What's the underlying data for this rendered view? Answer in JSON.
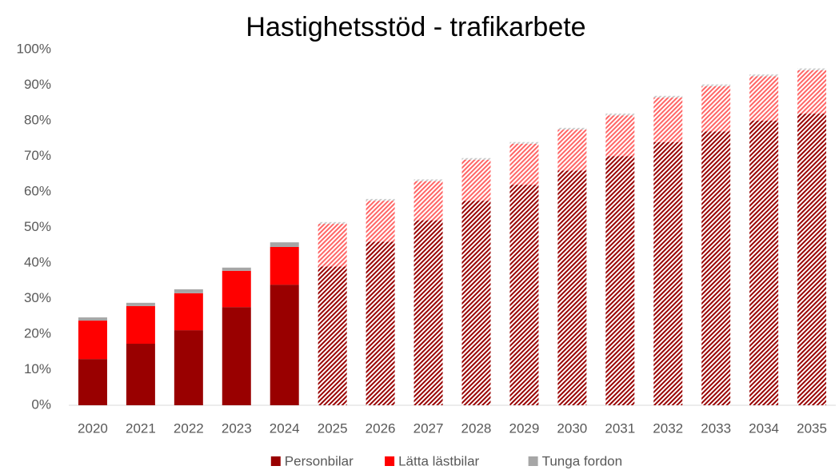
{
  "chart_data": {
    "type": "stacked_bar",
    "title": "Hastighetsstöd - trafikarbete",
    "categories": [
      "2020",
      "2021",
      "2022",
      "2023",
      "2024",
      "2025",
      "2026",
      "2027",
      "2028",
      "2029",
      "2030",
      "2031",
      "2032",
      "2033",
      "2034",
      "2035"
    ],
    "hatched": [
      false,
      false,
      false,
      false,
      false,
      true,
      true,
      true,
      true,
      true,
      true,
      true,
      true,
      true,
      true,
      true
    ],
    "series": [
      {
        "name": "Personbilar",
        "color": "#990000",
        "values": [
          13,
          17.3,
          21.1,
          27.6,
          33.9,
          39,
          46,
          52,
          57.5,
          62,
          66,
          70,
          74,
          77,
          80,
          82
        ]
      },
      {
        "name": "Lätta lästbilar",
        "color": "#ff0000",
        "values": [
          10.8,
          10.6,
          10.4,
          10.2,
          10.6,
          12,
          11.5,
          11,
          11.5,
          11.5,
          11.5,
          11.5,
          12.5,
          12.7,
          12.5,
          12.2
        ]
      },
      {
        "name": "Tunga fordon",
        "color": "#a6a6a6",
        "values": [
          0.9,
          0.9,
          1.1,
          0.9,
          1.3,
          0.5,
          0.5,
          0.5,
          0.5,
          0.5,
          0.5,
          0.5,
          0.5,
          0.5,
          0.5,
          0.5
        ]
      }
    ],
    "ylim": [
      0,
      100
    ],
    "yticks": [
      {
        "value": 0,
        "label": "0%"
      },
      {
        "value": 10,
        "label": "10%"
      },
      {
        "value": 20,
        "label": "20%"
      },
      {
        "value": 30,
        "label": "30%"
      },
      {
        "value": 40,
        "label": "40%"
      },
      {
        "value": 50,
        "label": "50%"
      },
      {
        "value": 60,
        "label": "60%"
      },
      {
        "value": 70,
        "label": "70%"
      },
      {
        "value": 80,
        "label": "80%"
      },
      {
        "value": 90,
        "label": "90%"
      },
      {
        "value": 100,
        "label": "100%"
      }
    ],
    "grid": false,
    "legend": "bottom"
  }
}
